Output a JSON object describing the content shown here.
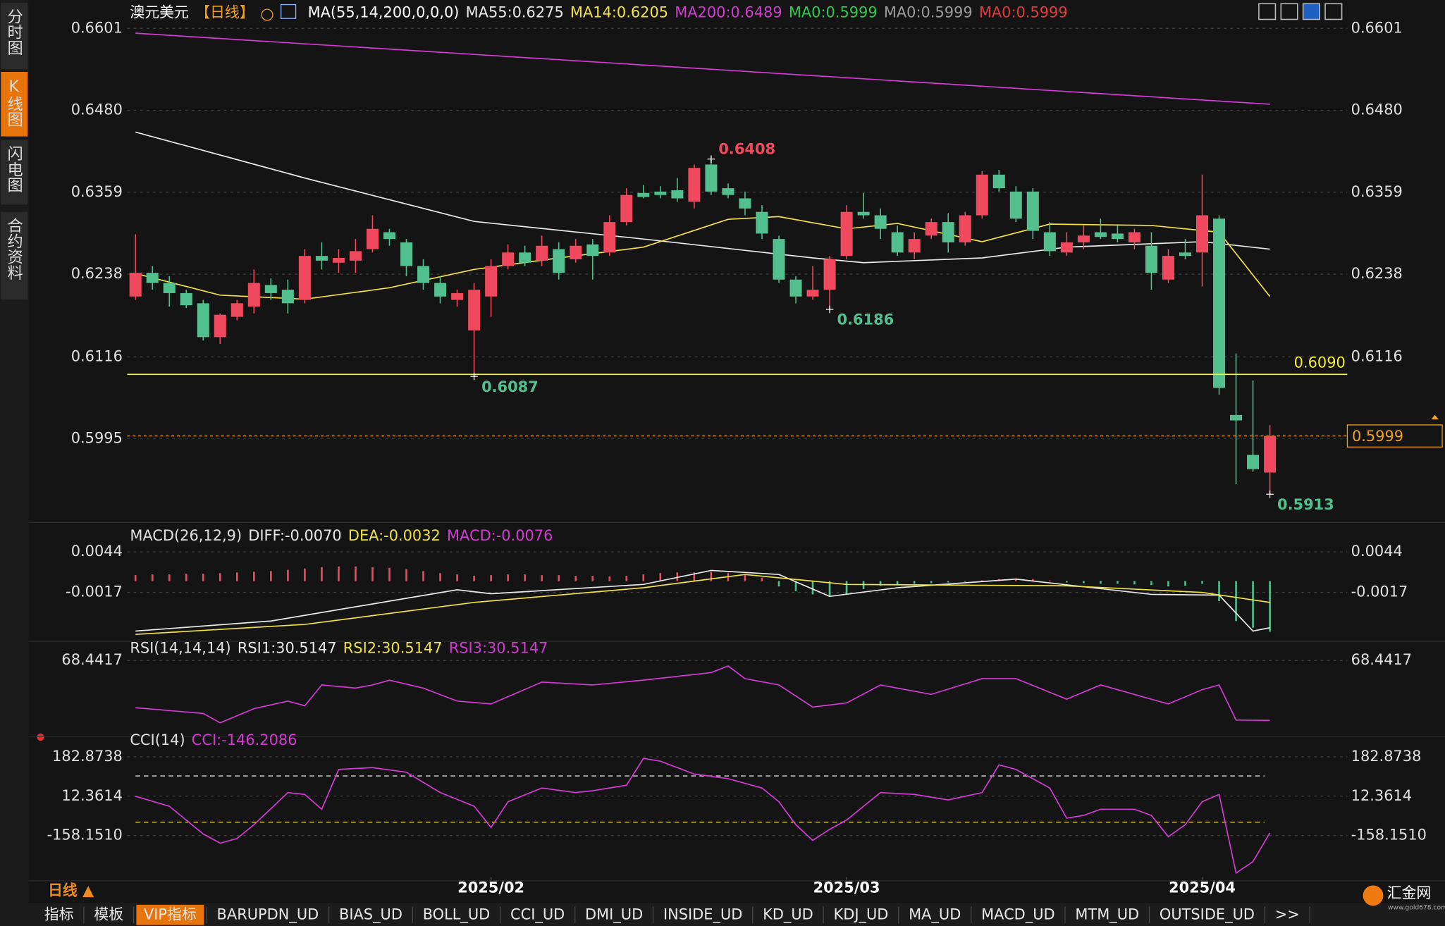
{
  "ui": {
    "side_tabs": [
      "分时图",
      "K线图",
      "闪电图",
      "合约资料"
    ],
    "period_switch": "日线 ▲",
    "bottom_tabs": [
      "指标",
      "模板",
      "VIP指标",
      "BARUPDN_UD",
      "BIAS_UD",
      "BOLL_UD",
      "CCI_UD",
      "DMI_UD",
      "INSIDE_UD",
      "KD_UD",
      "KDJ_UD",
      "MA_UD",
      "MACD_UD",
      "MTM_UD",
      "OUTSIDE_UD",
      ">>"
    ],
    "active_tab": 2,
    "logo": "汇金网",
    "logo_url": "www.gold678.com"
  },
  "chart_data": [
    {
      "type": "candlestick",
      "title": "澳元美元",
      "period": "【日线】",
      "indicator": "MA(55,14,200,0,0,0)",
      "up_color": "#f0495d",
      "down_color": "#52c08e",
      "xlim": [
        0,
        67
      ],
      "xticks": [
        {
          "value": 21,
          "label": "2025/02"
        },
        {
          "value": 42,
          "label": "2025/03"
        },
        {
          "value": 63,
          "label": "2025/04"
        }
      ],
      "ylim": [
        0.5874,
        0.6643
      ],
      "yticks": [
        0.6601,
        {
          "value": 0.648,
          "label": "0.6480"
        },
        0.6359,
        0.6238,
        0.6116,
        0.5995
      ],
      "grid": true,
      "open": [
        0.6205,
        0.624,
        0.6225,
        0.621,
        0.6195,
        0.6145,
        0.6175,
        0.619,
        0.6222,
        0.6215,
        0.62,
        0.6265,
        0.6255,
        0.6258,
        0.6275,
        0.63,
        0.6285,
        0.625,
        0.6225,
        0.62,
        0.6155,
        0.6205,
        0.625,
        0.627,
        0.6258,
        0.6275,
        0.626,
        0.6282,
        0.627,
        0.6315,
        0.6358,
        0.636,
        0.6362,
        0.6345,
        0.64,
        0.6365,
        0.635,
        0.633,
        0.629,
        0.623,
        0.6205,
        0.6215,
        0.6265,
        0.633,
        0.6325,
        0.63,
        0.627,
        0.6295,
        0.6315,
        0.6285,
        0.6325,
        0.6385,
        0.636,
        0.636,
        0.63,
        0.627,
        0.6285,
        0.63,
        0.6298,
        0.6285,
        0.628,
        0.623,
        0.627,
        0.627,
        0.632,
        0.603,
        0.5971,
        0.5945
      ],
      "high": [
        0.6297,
        0.625,
        0.6235,
        0.6215,
        0.62,
        0.618,
        0.62,
        0.6245,
        0.6232,
        0.623,
        0.6275,
        0.6285,
        0.6275,
        0.629,
        0.6325,
        0.6305,
        0.629,
        0.626,
        0.6235,
        0.6215,
        0.6225,
        0.626,
        0.6282,
        0.628,
        0.6295,
        0.6285,
        0.629,
        0.629,
        0.6325,
        0.6365,
        0.637,
        0.6368,
        0.638,
        0.64,
        0.6408,
        0.6372,
        0.636,
        0.634,
        0.6295,
        0.6235,
        0.625,
        0.6265,
        0.634,
        0.6358,
        0.6335,
        0.631,
        0.63,
        0.632,
        0.6328,
        0.633,
        0.639,
        0.6392,
        0.6368,
        0.6365,
        0.6315,
        0.63,
        0.631,
        0.632,
        0.631,
        0.6305,
        0.63,
        0.6275,
        0.629,
        0.6385,
        0.6325,
        0.6121,
        0.6081,
        0.6015
      ],
      "low": [
        0.62,
        0.6215,
        0.619,
        0.6188,
        0.614,
        0.6135,
        0.617,
        0.618,
        0.62,
        0.618,
        0.6195,
        0.6245,
        0.624,
        0.624,
        0.627,
        0.628,
        0.6235,
        0.6215,
        0.6195,
        0.619,
        0.6087,
        0.6175,
        0.6245,
        0.625,
        0.625,
        0.623,
        0.6255,
        0.623,
        0.6265,
        0.631,
        0.635,
        0.635,
        0.6345,
        0.6335,
        0.6355,
        0.635,
        0.6325,
        0.629,
        0.6225,
        0.6195,
        0.62,
        0.6186,
        0.626,
        0.632,
        0.629,
        0.6265,
        0.626,
        0.629,
        0.627,
        0.628,
        0.632,
        0.636,
        0.6315,
        0.629,
        0.6265,
        0.6265,
        0.6275,
        0.629,
        0.6285,
        0.6275,
        0.6215,
        0.6225,
        0.626,
        0.622,
        0.606,
        0.5928,
        0.5946,
        0.5913
      ],
      "close": [
        0.624,
        0.6225,
        0.621,
        0.6192,
        0.6145,
        0.6178,
        0.6195,
        0.6225,
        0.621,
        0.6195,
        0.6265,
        0.6258,
        0.6262,
        0.6272,
        0.6305,
        0.629,
        0.625,
        0.6225,
        0.6205,
        0.621,
        0.6215,
        0.625,
        0.627,
        0.6255,
        0.628,
        0.624,
        0.628,
        0.6265,
        0.6315,
        0.6355,
        0.6352,
        0.6355,
        0.635,
        0.6395,
        0.636,
        0.6355,
        0.6335,
        0.6298,
        0.623,
        0.6205,
        0.6215,
        0.626,
        0.633,
        0.6325,
        0.6305,
        0.627,
        0.629,
        0.6315,
        0.6285,
        0.6325,
        0.6385,
        0.6365,
        0.632,
        0.6302,
        0.6272,
        0.6285,
        0.6295,
        0.6293,
        0.629,
        0.63,
        0.624,
        0.6265,
        0.6265,
        0.6325,
        0.607,
        0.6022,
        0.595,
        0.5999
      ],
      "series": [
        {
          "name": "MA55:0.6275",
          "color": "#e8e8e8",
          "x": [
            0,
            10,
            20,
            30,
            40,
            43,
            50,
            55,
            63,
            67
          ],
          "values": [
            0.6448,
            0.638,
            0.6316,
            0.629,
            0.6262,
            0.6255,
            0.6262,
            0.6278,
            0.6286,
            0.6275
          ]
        },
        {
          "name": "MA14:0.6205",
          "color": "#f0e040",
          "x": [
            0,
            5,
            10,
            15,
            20,
            25,
            30,
            35,
            38,
            42,
            45,
            50,
            54,
            60,
            64,
            67
          ],
          "values": [
            0.6239,
            0.6207,
            0.6201,
            0.6218,
            0.6245,
            0.6262,
            0.6278,
            0.6319,
            0.6323,
            0.6305,
            0.6313,
            0.6286,
            0.6312,
            0.631,
            0.63,
            0.6205
          ]
        },
        {
          "name": "MA200:0.6489",
          "color": "#d23ad2",
          "x": [
            0,
            67
          ],
          "values": [
            0.6594,
            0.6489
          ]
        }
      ],
      "extra_legend": [
        {
          "name": "MA0:0.5999",
          "color": "#2fc94f"
        },
        {
          "name": "MA0:0.5999",
          "color": "#9a9a9a"
        },
        {
          "name": "MA0:0.5999",
          "color": "#e23a3a"
        }
      ],
      "hline": {
        "value": 0.609,
        "label": "0.6090",
        "color": "#f5ef2a"
      },
      "price_line": {
        "value": 0.5999,
        "color": "#f0a020"
      },
      "annotations": [
        {
          "x": 34,
          "value": 0.6408,
          "color": "#f0495d"
        },
        {
          "x": 41,
          "value": 0.6186,
          "color": "#52c08e"
        },
        {
          "x": 20,
          "value": 0.6087,
          "color": "#52c08e"
        },
        {
          "x": 67,
          "value": 0.5913,
          "color": "#52c08e"
        }
      ]
    },
    {
      "type": "macd",
      "title": "MACD(26,12,9)",
      "ylim": [
        -0.0089,
        0.0084
      ],
      "yticks": [
        0.0044,
        -0.0017
      ],
      "grid": true,
      "histogram": {
        "name": "MACD:-0.0076",
        "color": "#d23ad2",
        "up_color": "#f0495d",
        "down_color": "#52c08e",
        "values": [
          0.0009,
          0.001,
          0.001,
          0.0011,
          0.0011,
          0.0012,
          0.0013,
          0.0014,
          0.0015,
          0.0017,
          0.0019,
          0.0021,
          0.0022,
          0.0022,
          0.0021,
          0.002,
          0.0018,
          0.0015,
          0.0012,
          0.001,
          0.0008,
          0.0009,
          0.001,
          0.001,
          0.0009,
          0.0009,
          0.0008,
          0.0008,
          0.0007,
          0.0008,
          0.001,
          0.0012,
          0.0013,
          0.0013,
          0.0014,
          0.0012,
          0.0009,
          0.0005,
          -0.0008,
          -0.0015,
          -0.002,
          -0.0022,
          -0.0019,
          -0.0012,
          -0.0007,
          -0.0005,
          -0.0004,
          -0.0003,
          -0.0002,
          -0.0001,
          0.0001,
          0.0003,
          0.0004,
          0.0003,
          0.0001,
          -0.0002,
          -0.0003,
          -0.0004,
          -0.0004,
          -0.0005,
          -0.0006,
          -0.0008,
          -0.0007,
          -0.0004,
          -0.003,
          -0.006,
          -0.007,
          -0.0076
        ]
      },
      "series": [
        {
          "name": "DIFF:-0.0070",
          "color": "#e8e8e8",
          "x": [
            0,
            8,
            15,
            19,
            21,
            30,
            34,
            38,
            41,
            45,
            52,
            60,
            64,
            66,
            67
          ],
          "values": [
            -0.0075,
            -0.006,
            -0.003,
            -0.0013,
            -0.0019,
            -0.0005,
            0.0016,
            0.001,
            -0.0023,
            -0.001,
            0.0003,
            -0.002,
            -0.0021,
            -0.0075,
            -0.007
          ]
        },
        {
          "name": "DEA:-0.0032",
          "color": "#f0e040",
          "x": [
            0,
            10,
            20,
            30,
            36,
            42,
            55,
            63,
            67
          ],
          "values": [
            -0.008,
            -0.0065,
            -0.0032,
            -0.001,
            0.001,
            -0.0005,
            -0.0007,
            -0.0017,
            -0.0032
          ]
        }
      ]
    },
    {
      "type": "line",
      "title": "RSI(14,14,14)",
      "ylim": [
        20,
        80
      ],
      "yticks": [
        68.4417
      ],
      "grid": true,
      "series": [
        {
          "name": "RSI1:30.5147",
          "color": "#e8e8e8"
        },
        {
          "name": "RSI2:30.5147",
          "color": "#f0e040"
        },
        {
          "name": "RSI3:30.5147",
          "color": "#d23ad2",
          "x": [
            0,
            4,
            5,
            7,
            9,
            10,
            11,
            13,
            14,
            15,
            17,
            19,
            21,
            24,
            27,
            30,
            34,
            35,
            36,
            38,
            40,
            42,
            44,
            47,
            50,
            52,
            55,
            57,
            61,
            63,
            64,
            65,
            67
          ],
          "values": [
            38.6,
            35,
            29,
            38,
            42.8,
            39.8,
            53,
            51,
            53,
            56,
            51,
            42.8,
            41,
            54.8,
            53,
            56,
            60.8,
            65,
            57,
            53,
            39,
            41.6,
            53,
            47,
            57,
            57,
            44,
            53,
            41,
            50,
            53,
            30.8,
            30.5147
          ]
        }
      ]
    },
    {
      "type": "line",
      "title": "CCI(14)",
      "ylim": [
        -350,
        268
      ],
      "yticks": [
        182.8738,
        12.3614,
        {
          "value": -158.151,
          "label": "-158.1510"
        }
      ],
      "grid": true,
      "levels": [
        {
          "value": 100,
          "color": "#dddddd"
        },
        {
          "value": -100,
          "color": "#f0e040"
        }
      ],
      "series": [
        {
          "name": "CCI:-146.2086",
          "color": "#d23ad2",
          "x": [
            0,
            2,
            4,
            5,
            6,
            7,
            9,
            10,
            11,
            12,
            14,
            16,
            18,
            20,
            21,
            22,
            24,
            26,
            27,
            28,
            29,
            30,
            31,
            33,
            35,
            37,
            38,
            39,
            40,
            41,
            42,
            44,
            46,
            48,
            50,
            51,
            52,
            54,
            55,
            56,
            57,
            59,
            60,
            61,
            62,
            63,
            64,
            65,
            66,
            67
          ],
          "values": [
            12,
            -31,
            -151,
            -191,
            -171,
            -111,
            28,
            20,
            -44,
            128,
            136,
            116,
            28,
            -31,
            -123,
            -12,
            48,
            28,
            36,
            48,
            60,
            176,
            164,
            108,
            88,
            48,
            -12,
            -111,
            -179,
            -131,
            -91,
            28,
            20,
            -4,
            28,
            148,
            128,
            48,
            -83,
            -71,
            -44,
            -44,
            -71,
            -163,
            -111,
            -12,
            20,
            -320,
            -271,
            -146.2086
          ]
        }
      ]
    }
  ]
}
